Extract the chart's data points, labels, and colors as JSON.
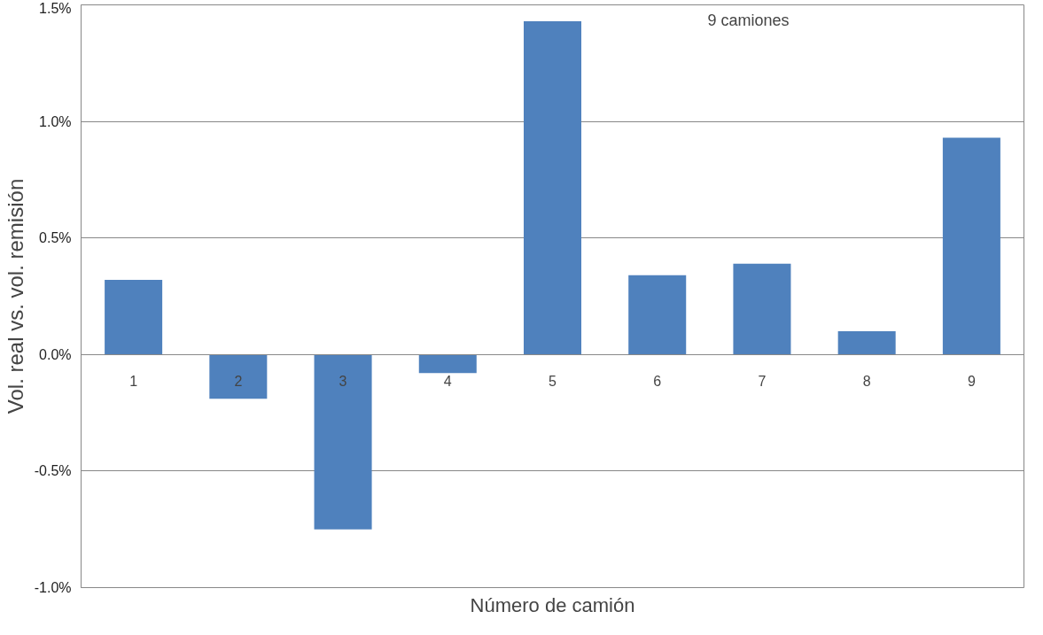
{
  "chart_data": {
    "type": "bar",
    "xlabel": "Número de camión",
    "ylabel": "Vol. real vs. vol. remisión",
    "annotations": [
      "9 camiones"
    ],
    "categories": [
      "1",
      "2",
      "3",
      "4",
      "5",
      "6",
      "7",
      "8",
      "9"
    ],
    "values": [
      0.32,
      -0.19,
      -0.75,
      -0.08,
      1.43,
      0.34,
      0.39,
      0.1,
      0.93
    ],
    "color": "#4f81bd",
    "ylim": [
      -1.0,
      1.5
    ],
    "yticks": [
      {
        "value": -1.0,
        "label": "-1.0%"
      },
      {
        "value": -0.5,
        "label": "-0.5%"
      },
      {
        "value": 0.0,
        "label": "0.0%"
      },
      {
        "value": 0.5,
        "label": "0.5%"
      },
      {
        "value": 1.0,
        "label": "1.0%"
      },
      {
        "value": 1.5,
        "label": "1.5%"
      }
    ],
    "grid": "y"
  }
}
